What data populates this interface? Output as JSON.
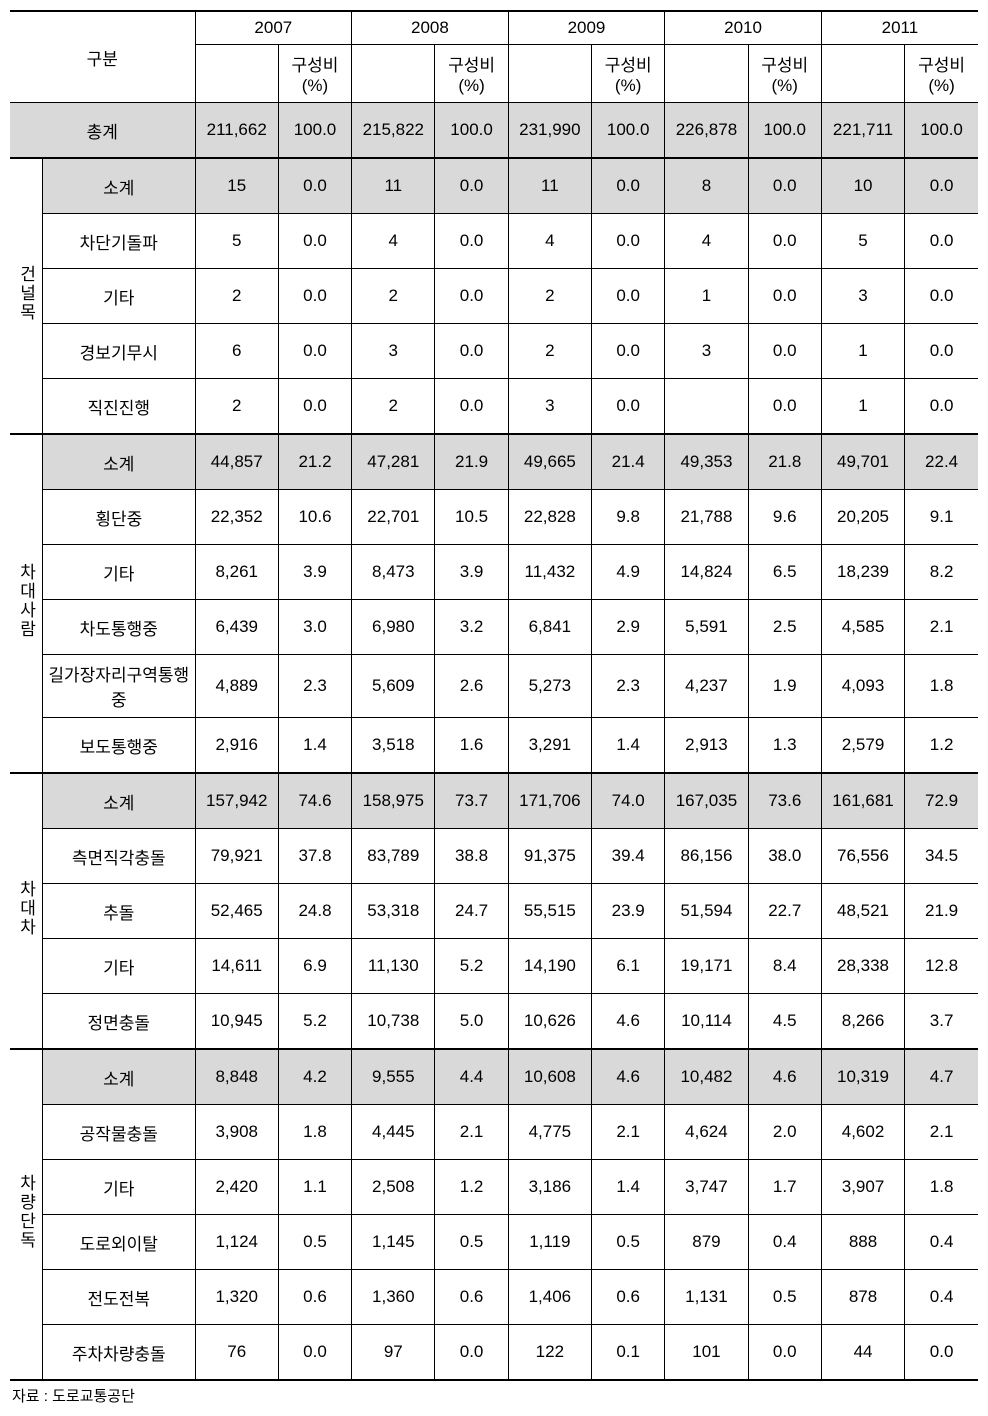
{
  "headers": {
    "category": "구분",
    "years": [
      "2007",
      "2008",
      "2009",
      "2010",
      "2011"
    ],
    "pct_label": "구성비(%)"
  },
  "total": {
    "label": "총계",
    "vals": [
      "211,662",
      "100.0",
      "215,822",
      "100.0",
      "231,990",
      "100.0",
      "226,878",
      "100.0",
      "221,711",
      "100.0"
    ]
  },
  "groups": [
    {
      "name": "건널목",
      "rows": [
        {
          "label": "소계",
          "shaded": true,
          "vals": [
            "15",
            "0.0",
            "11",
            "0.0",
            "11",
            "0.0",
            "8",
            "0.0",
            "10",
            "0.0"
          ]
        },
        {
          "label": "차단기돌파",
          "vals": [
            "5",
            "0.0",
            "4",
            "0.0",
            "4",
            "0.0",
            "4",
            "0.0",
            "5",
            "0.0"
          ]
        },
        {
          "label": "기타",
          "vals": [
            "2",
            "0.0",
            "2",
            "0.0",
            "2",
            "0.0",
            "1",
            "0.0",
            "3",
            "0.0"
          ]
        },
        {
          "label": "경보기무시",
          "vals": [
            "6",
            "0.0",
            "3",
            "0.0",
            "2",
            "0.0",
            "3",
            "0.0",
            "1",
            "0.0"
          ]
        },
        {
          "label": "직진진행",
          "vals": [
            "2",
            "0.0",
            "2",
            "0.0",
            "3",
            "0.0",
            "",
            "0.0",
            "1",
            "0.0"
          ]
        }
      ]
    },
    {
      "name": "차대사람",
      "rows": [
        {
          "label": "소계",
          "shaded": true,
          "vals": [
            "44,857",
            "21.2",
            "47,281",
            "21.9",
            "49,665",
            "21.4",
            "49,353",
            "21.8",
            "49,701",
            "22.4"
          ]
        },
        {
          "label": "횡단중",
          "vals": [
            "22,352",
            "10.6",
            "22,701",
            "10.5",
            "22,828",
            "9.8",
            "21,788",
            "9.6",
            "20,205",
            "9.1"
          ]
        },
        {
          "label": "기타",
          "vals": [
            "8,261",
            "3.9",
            "8,473",
            "3.9",
            "11,432",
            "4.9",
            "14,824",
            "6.5",
            "18,239",
            "8.2"
          ]
        },
        {
          "label": "차도통행중",
          "vals": [
            "6,439",
            "3.0",
            "6,980",
            "3.2",
            "6,841",
            "2.9",
            "5,591",
            "2.5",
            "4,585",
            "2.1"
          ]
        },
        {
          "label": "길가장자리구역통행중",
          "vals": [
            "4,889",
            "2.3",
            "5,609",
            "2.6",
            "5,273",
            "2.3",
            "4,237",
            "1.9",
            "4,093",
            "1.8"
          ]
        },
        {
          "label": "보도통행중",
          "vals": [
            "2,916",
            "1.4",
            "3,518",
            "1.6",
            "3,291",
            "1.4",
            "2,913",
            "1.3",
            "2,579",
            "1.2"
          ]
        }
      ]
    },
    {
      "name": "차대차",
      "rows": [
        {
          "label": "소계",
          "shaded": true,
          "vals": [
            "157,942",
            "74.6",
            "158,975",
            "73.7",
            "171,706",
            "74.0",
            "167,035",
            "73.6",
            "161,681",
            "72.9"
          ]
        },
        {
          "label": "측면직각충돌",
          "vals": [
            "79,921",
            "37.8",
            "83,789",
            "38.8",
            "91,375",
            "39.4",
            "86,156",
            "38.0",
            "76,556",
            "34.5"
          ]
        },
        {
          "label": "추돌",
          "vals": [
            "52,465",
            "24.8",
            "53,318",
            "24.7",
            "55,515",
            "23.9",
            "51,594",
            "22.7",
            "48,521",
            "21.9"
          ]
        },
        {
          "label": "기타",
          "vals": [
            "14,611",
            "6.9",
            "11,130",
            "5.2",
            "14,190",
            "6.1",
            "19,171",
            "8.4",
            "28,338",
            "12.8"
          ]
        },
        {
          "label": "정면충돌",
          "vals": [
            "10,945",
            "5.2",
            "10,738",
            "5.0",
            "10,626",
            "4.6",
            "10,114",
            "4.5",
            "8,266",
            "3.7"
          ]
        }
      ]
    },
    {
      "name": "차량단독",
      "rows": [
        {
          "label": "소계",
          "shaded": true,
          "vals": [
            "8,848",
            "4.2",
            "9,555",
            "4.4",
            "10,608",
            "4.6",
            "10,482",
            "4.6",
            "10,319",
            "4.7"
          ]
        },
        {
          "label": "공작물충돌",
          "vals": [
            "3,908",
            "1.8",
            "4,445",
            "2.1",
            "4,775",
            "2.1",
            "4,624",
            "2.0",
            "4,602",
            "2.1"
          ]
        },
        {
          "label": "기타",
          "vals": [
            "2,420",
            "1.1",
            "2,508",
            "1.2",
            "3,186",
            "1.4",
            "3,747",
            "1.7",
            "3,907",
            "1.8"
          ]
        },
        {
          "label": "도로외이탈",
          "vals": [
            "1,124",
            "0.5",
            "1,145",
            "0.5",
            "1,119",
            "0.5",
            "879",
            "0.4",
            "888",
            "0.4"
          ]
        },
        {
          "label": "전도전복",
          "vals": [
            "1,320",
            "0.6",
            "1,360",
            "0.6",
            "1,406",
            "0.6",
            "1,131",
            "0.5",
            "878",
            "0.4"
          ]
        },
        {
          "label": "주차차량충돌",
          "vals": [
            "76",
            "0.0",
            "97",
            "0.0",
            "122",
            "0.1",
            "101",
            "0.0",
            "44",
            "0.0"
          ]
        }
      ]
    }
  ],
  "footnote": "자료 : 도로교통공단"
}
